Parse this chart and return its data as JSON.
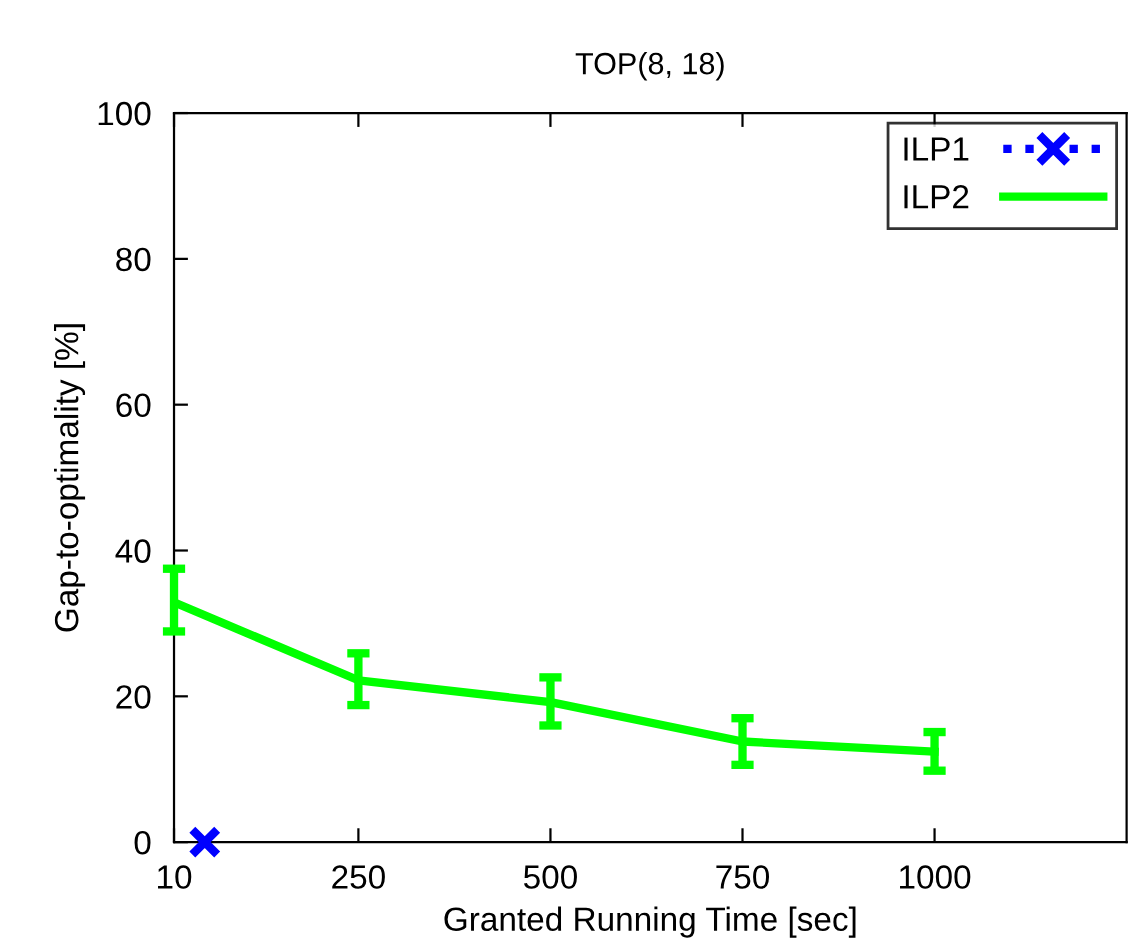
{
  "chart_data": {
    "type": "line",
    "title": "TOP(8, 18)",
    "xlabel": "Granted Running Time [sec]",
    "ylabel": "Gap-to-optimality [%]",
    "xlim": [
      10,
      1250
    ],
    "xticks": [
      10,
      250,
      500,
      750,
      1000
    ],
    "ylim": [
      0,
      100
    ],
    "yticks": [
      0,
      20,
      40,
      60,
      80,
      100
    ],
    "legend": "top right",
    "grid": false,
    "series": [
      {
        "name": "ILP1",
        "color": "#0000ff",
        "type": "scatter",
        "marker": "cross",
        "line_style": "dotted",
        "x": [
          50
        ],
        "values": [
          0
        ]
      },
      {
        "name": "ILP2",
        "color": "#00ff00",
        "marker": "none",
        "line_style": "solid",
        "x": [
          10,
          250,
          500,
          750,
          1000
        ],
        "values": [
          32.9,
          22.2,
          19.2,
          13.8,
          12.4
        ],
        "errors": [
          [
            28.9,
            37.5
          ],
          [
            18.8,
            25.9
          ],
          [
            16.0,
            22.6
          ],
          [
            10.6,
            17.0
          ],
          [
            9.8,
            15.1
          ]
        ]
      }
    ]
  }
}
